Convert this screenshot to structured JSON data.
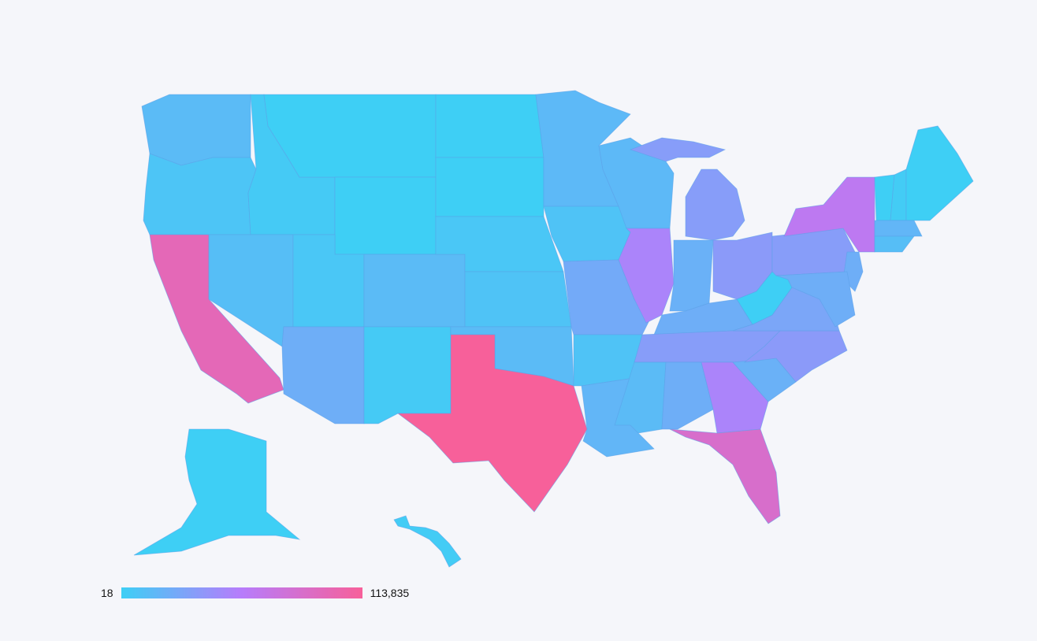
{
  "legend": {
    "min_label": "18",
    "max_label": "113,835",
    "colors": [
      "#3ecff5",
      "#b77cfb",
      "#f7609a"
    ]
  },
  "states": {
    "WA": 0.12,
    "OR": 0.06,
    "CA": 0.85,
    "ID": 0.03,
    "NV": 0.1,
    "MT": 0.0,
    "WY": 0.0,
    "UT": 0.05,
    "AZ": 0.2,
    "CO": 0.12,
    "NM": 0.03,
    "ND": 0.0,
    "SD": 0.0,
    "NE": 0.05,
    "KS": 0.07,
    "OK": 0.12,
    "TX": 1.0,
    "MN": 0.13,
    "IA": 0.07,
    "MO": 0.22,
    "AR": 0.07,
    "LA": 0.15,
    "WI": 0.13,
    "IL": 0.45,
    "MI-L": 0.3,
    "MI-U": 0.3,
    "IN": 0.18,
    "OH": 0.32,
    "KY": 0.2,
    "TN": 0.3,
    "MS": 0.12,
    "AL": 0.2,
    "GA": 0.45,
    "FL": 0.75,
    "SC": 0.18,
    "NC": 0.32,
    "VA": 0.25,
    "WV": 0.0,
    "PA": 0.3,
    "NY": 0.55,
    "NJ": 0.2,
    "MD": 0.2,
    "VT": 0.0,
    "NH": 0.02,
    "ME": 0.0,
    "MA": 0.15,
    "CT": 0.1,
    "AK": 0.0,
    "HI": 0.02
  }
}
